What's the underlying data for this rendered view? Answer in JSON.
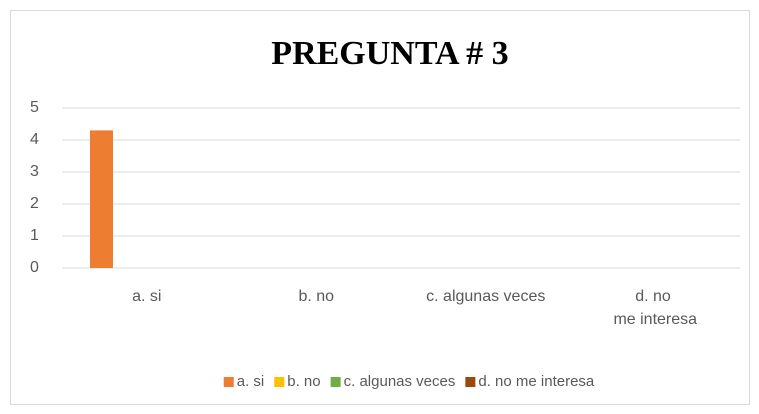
{
  "chart_data": {
    "type": "bar",
    "title": "PREGUNTA # 3",
    "categories": [
      "a. si",
      "b. no",
      "c. algunas veces",
      "d. no me interesa"
    ],
    "series": [
      {
        "name": "a. si",
        "color": "#ed7d31",
        "values": [
          4.3,
          0,
          0,
          0
        ]
      },
      {
        "name": "b. no",
        "color": "#ffc000",
        "values": [
          0,
          0,
          0,
          0
        ]
      },
      {
        "name": "c. algunas veces",
        "color": "#70ad47",
        "values": [
          0,
          0,
          0,
          0
        ]
      },
      {
        "name": "d. no me interesa",
        "color": "#9e480e",
        "values": [
          0,
          0,
          0,
          0
        ]
      }
    ],
    "ylim": [
      0,
      5
    ],
    "yticks": [
      0,
      1,
      2,
      3,
      4,
      5
    ],
    "grid": true,
    "legend": "bottom"
  }
}
